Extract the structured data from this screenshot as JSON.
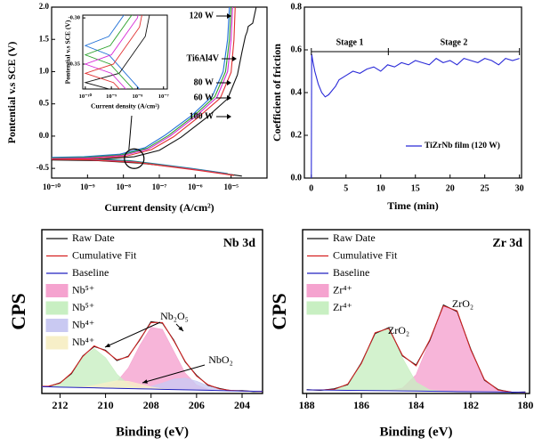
{
  "chart_data": [
    {
      "type": "line",
      "xscale": "log",
      "xlabel": "Current density (A/cm²)",
      "ylabel": "Pontential v.s SCE (V)",
      "xlim": [
        1e-10,
        0.0001
      ],
      "ylim": [
        -0.65,
        2.0
      ],
      "xticks": [
        {
          "value": 1e-10,
          "label": "10⁻¹⁰"
        },
        {
          "value": 1e-09,
          "label": "10⁻⁹"
        },
        {
          "value": 1e-08,
          "label": "10⁻⁸"
        },
        {
          "value": 1e-07,
          "label": "10⁻⁷"
        },
        {
          "value": 1e-06,
          "label": "10⁻⁶"
        },
        {
          "value": 1e-05,
          "label": "10⁻⁵"
        }
      ],
      "yticks": [
        -0.5,
        {
          "value": 0,
          "label": "0.0"
        },
        0.5,
        {
          "value": 1,
          "label": "1.0"
        },
        1.5,
        {
          "value": 2,
          "label": "2.0"
        }
      ],
      "series": [
        {
          "name": "120 W",
          "color": "#1f6fd6",
          "x": [
            8e-06,
            8e-07,
            8e-08,
            1.5e-08,
            8e-10,
            1e-10,
            8e-10,
            8e-09,
            4e-08,
            1.5e-07,
            8e-07,
            3e-06,
            6e-06,
            8e-06,
            9e-06
          ],
          "values": [
            -0.58,
            -0.5,
            -0.43,
            -0.38,
            -0.34,
            -0.33,
            -0.32,
            -0.28,
            -0.18,
            0.02,
            0.32,
            0.62,
            1.0,
            1.5,
            2.0
          ]
        },
        {
          "name": "Ti6Al4V",
          "color": "#111111",
          "x": [
            2e-05,
            2e-06,
            2e-07,
            3e-08,
            2e-09,
            1e-10,
            2e-09,
            2e-08,
            1e-07,
            4e-07,
            2e-06,
            8e-06,
            1.5e-05,
            2e-05,
            2.5e-05,
            2.8e-05,
            3e-05,
            4e-05,
            5e-05
          ],
          "values": [
            -0.62,
            -0.54,
            -0.47,
            -0.42,
            -0.38,
            -0.37,
            -0.36,
            -0.32,
            -0.22,
            -0.02,
            0.28,
            0.58,
            0.95,
            1.3,
            1.55,
            1.62,
            1.7,
            1.75,
            2.0
          ]
        },
        {
          "name": "80 W",
          "color": "#2aa02a",
          "x": [
            9e-06,
            9e-07,
            9e-08,
            1.8e-08,
            9e-10,
            1e-10,
            9e-10,
            9e-09,
            4.5e-08,
            1.8e-07,
            9e-07,
            3.5e-06,
            7e-06,
            9e-06,
            1e-05
          ],
          "values": [
            -0.59,
            -0.51,
            -0.44,
            -0.39,
            -0.35,
            -0.34,
            -0.33,
            -0.29,
            -0.19,
            0.01,
            0.31,
            0.61,
            1.0,
            1.5,
            2.0
          ]
        },
        {
          "name": "60 W",
          "color": "#d62ad6",
          "x": [
            1e-05,
            1e-06,
            1e-07,
            2e-08,
            1e-09,
            1e-10,
            1e-09,
            1e-08,
            5e-08,
            2e-07,
            1e-06,
            4e-06,
            8e-06,
            1e-05,
            1.1e-05
          ],
          "values": [
            -0.6,
            -0.52,
            -0.45,
            -0.4,
            -0.36,
            -0.35,
            -0.34,
            -0.3,
            -0.2,
            0,
            0.3,
            0.6,
            1.0,
            1.5,
            2.0
          ]
        },
        {
          "name": "100 W",
          "color": "#e03030",
          "x": [
            1.2e-05,
            1.2e-06,
            1.2e-07,
            2.5e-08,
            1.2e-09,
            1e-10,
            1.2e-09,
            1.2e-08,
            6e-08,
            2.5e-07,
            1.2e-06,
            5e-06,
            1e-05,
            1.2e-05,
            1.3e-05
          ],
          "values": [
            -0.61,
            -0.53,
            -0.46,
            -0.41,
            -0.37,
            -0.36,
            -0.35,
            -0.31,
            -0.21,
            -0.01,
            0.29,
            0.59,
            0.99,
            1.49,
            2.0
          ]
        }
      ],
      "inset": {
        "xscale": "log",
        "xlabel": "Current density (A/cm²)",
        "ylabel": "Pontential v.s SCE (V)",
        "xlim": [
          8e-11,
          1.4e-07
        ],
        "ylim": [
          -0.377,
          -0.297
        ],
        "xticks": [
          {
            "value": 1e-10,
            "label": "10⁻¹⁰"
          },
          {
            "value": 1e-09,
            "label": "10⁻⁹"
          },
          {
            "value": 1e-08,
            "label": "10⁻⁸"
          },
          {
            "value": 1e-07,
            "label": "10⁻⁷"
          }
        ],
        "yticks": [
          {
            "value": -0.3,
            "label": "-0.30"
          },
          -0.35
        ]
      }
    },
    {
      "type": "line",
      "xlabel": "Time (min)",
      "ylabel": "Coefficient of friction",
      "xlim": [
        -1,
        30.3
      ],
      "ylim": [
        0,
        0.8
      ],
      "xticks": [
        0,
        5,
        10,
        15,
        20,
        25,
        30
      ],
      "yticks": [
        {
          "value": 0,
          "label": "0.0"
        },
        0.2,
        0.4,
        0.6,
        0.8
      ],
      "annotations": [
        "Stage 1",
        "Stage 2"
      ],
      "legend": "lower right",
      "x": [
        0,
        0.05,
        0.2,
        0.5,
        1,
        1.5,
        2,
        2.5,
        3,
        3.5,
        4,
        5,
        6,
        7,
        8,
        9,
        10,
        11,
        12,
        13,
        14,
        15,
        16,
        17,
        18,
        19,
        20,
        21,
        22,
        23,
        24,
        25,
        26,
        27,
        28,
        29,
        30
      ],
      "series": [
        {
          "name": "TiZrNb film (120 W)",
          "color": "#2a2ad8",
          "values": [
            0,
            0.58,
            0.55,
            0.5,
            0.44,
            0.4,
            0.38,
            0.39,
            0.41,
            0.43,
            0.46,
            0.48,
            0.5,
            0.49,
            0.51,
            0.52,
            0.5,
            0.53,
            0.52,
            0.54,
            0.53,
            0.55,
            0.54,
            0.53,
            0.56,
            0.54,
            0.55,
            0.53,
            0.56,
            0.55,
            0.54,
            0.56,
            0.55,
            0.53,
            0.56,
            0.55,
            0.56
          ]
        }
      ]
    },
    {
      "type": "area",
      "title": "Nb 3d",
      "xlabel": "Binding (eV)",
      "ylabel": "CPS",
      "xlim": [
        212.8,
        203.1
      ],
      "ylim": [
        3,
        170
      ],
      "xticks": [
        212,
        210,
        208,
        206,
        204
      ],
      "annotations": [
        "Nb₂O₅",
        "NbO₂"
      ],
      "legend": "upper left",
      "x": [
        213,
        212.5,
        212,
        211.5,
        211,
        210.5,
        210,
        209.5,
        209,
        208.5,
        208,
        207.5,
        207,
        206.5,
        206,
        205.5,
        205,
        204.5,
        204,
        203.5,
        203
      ],
      "series": [
        {
          "name": "Raw Date",
          "style": "line",
          "color": "#111111",
          "values": [
            10.5,
            10.2,
            13.9,
            23.2,
            41.3,
            50.8,
            47.1,
            36.5,
            41.0,
            57.4,
            76.2,
            74.6,
            57.3,
            35.1,
            21.5,
            11.4,
            8.2,
            5.8,
            5.9,
            4.9,
            5.3
          ]
        },
        {
          "name": "Cumulative Fit",
          "style": "line",
          "color": "#d62020",
          "values": [
            10.1,
            10.45,
            13.5,
            23.85,
            40.8,
            51.55,
            46.4,
            37.25,
            40.4,
            58.05,
            75.4,
            75.25,
            56.6,
            35.75,
            20.8,
            11.95,
            7.7,
            6.15,
            5.5,
            5.25,
            5
          ]
        },
        {
          "name": "Baseline",
          "style": "baseline",
          "color": "#2020c0",
          "values": [
            10,
            9.75,
            9.5,
            9.25,
            9,
            8.75,
            8.5,
            8.25,
            8,
            7.75,
            7.5,
            7.25,
            7,
            6.75,
            6.5,
            6.25,
            6,
            5.75,
            5.5,
            5.25,
            5
          ]
        },
        {
          "name": "Nb⁵⁺",
          "style": "area",
          "color": "#f5a3cf",
          "values": [
            10,
            9.75,
            9.5,
            9.25,
            9,
            8.95,
            10,
            15,
            29,
            51.8,
            70.5,
            68.3,
            46,
            23.8,
            11.7,
            7.3,
            6.1,
            5.75,
            5.5,
            5.25,
            5
          ]
        },
        {
          "name": "Nb⁵⁺",
          "style": "area",
          "color": "#c8efc2",
          "values": [
            10.1,
            10.4,
            13.5,
            23.7,
            40,
            48.8,
            39.5,
            22.7,
            12,
            8.5,
            7.6,
            7.25,
            7,
            6.75,
            6.5,
            6.25,
            6,
            5.75,
            5.5,
            5.25,
            5
          ]
        },
        {
          "name": "Nb⁴⁺",
          "style": "area",
          "color": "#c9c9f2",
          "values": [
            10,
            9.75,
            9.5,
            9.25,
            9,
            8.75,
            8.5,
            8.25,
            8,
            8.45,
            10.1,
            13.65,
            17.6,
            18.75,
            15.6,
            10.95,
            7.6,
            6.15,
            5.5,
            5.25,
            5
          ]
        },
        {
          "name": "Nb⁴⁺",
          "style": "area",
          "color": "#f7efc8",
          "values": [
            10,
            9.75,
            9.5,
            9.45,
            9.8,
            11.35,
            13.9,
            16.05,
            15.4,
            12.65,
            9.7,
            7.85,
            7,
            6.75,
            6.5,
            6.25,
            6,
            5.75,
            5.5,
            5.25,
            5
          ]
        }
      ]
    },
    {
      "type": "area",
      "title": "Zr 3d",
      "xlabel": "Binding (eV)",
      "ylabel": "CPS",
      "xlim": [
        188.15,
        179.85
      ],
      "ylim": [
        3,
        140
      ],
      "xticks": [
        188,
        186,
        184,
        182,
        180
      ],
      "annotations": [
        "ZrO₂",
        "ZrO₂"
      ],
      "legend": "upper left",
      "x": [
        188,
        187.5,
        187,
        186.5,
        186,
        185.5,
        185,
        184.5,
        184,
        183.5,
        183,
        182.5,
        182,
        181.5,
        181,
        180.5,
        180
      ],
      "series": [
        {
          "name": "Raw Date",
          "style": "line",
          "color": "#111111",
          "values": [
            6.3,
            5.6,
            6.9,
            10.4,
            28.7,
            53.1,
            58.1,
            34.4,
            26.8,
            47.2,
            77.0,
            71.5,
            40.1,
            14.1,
            6.3,
            3.9,
            4.3
          ]
        },
        {
          "name": "Cumulative Fit",
          "style": "line",
          "color": "#d62020",
          "values": [
            6,
            5.9,
            6.4,
            10.8,
            28.1,
            53.8,
            57.5,
            35,
            26.1,
            47.9,
            76.35,
            72.1,
            39.5,
            14.6,
            5.9,
            4.2,
            4
          ]
        },
        {
          "name": "Baseline",
          "style": "baseline",
          "color": "#2020c0",
          "values": [
            6,
            5.9,
            5.8,
            5.6,
            5.5,
            5.4,
            5.3,
            5.1,
            5,
            4.9,
            4.8,
            4.6,
            4.5,
            4.4,
            4.3,
            4.1,
            4
          ]
        },
        {
          "name": "Zr⁴⁺",
          "style": "area",
          "color": "#f5a3cf",
          "values": [
            6,
            5.9,
            5.8,
            5.6,
            5.5,
            5.4,
            5.5,
            7.5,
            18.7,
            46.9,
            76.3,
            72.1,
            39.5,
            14.6,
            5.9,
            4.2,
            4
          ]
        },
        {
          "name": "Zr⁴⁺",
          "style": "area",
          "color": "#c8efc2",
          "values": [
            6,
            5.9,
            6.4,
            10.8,
            28.1,
            53.8,
            57.3,
            32.8,
            12.4,
            5.9,
            4.85,
            4.6,
            4.5,
            4.4,
            4.3,
            4.1,
            4
          ]
        }
      ]
    }
  ]
}
